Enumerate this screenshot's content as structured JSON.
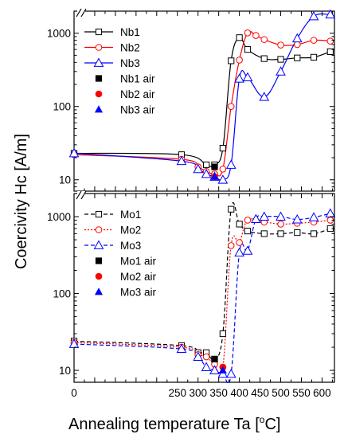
{
  "chart_data": [
    {
      "type": "line",
      "panel": "top",
      "yscale": "log",
      "xlim": [
        0,
        630
      ],
      "ylim": [
        7,
        2000
      ],
      "yticks": [
        10,
        100,
        1000
      ],
      "ytick_labels": [
        "10",
        "100",
        "1000"
      ],
      "grid": false,
      "legend_position": "top-left",
      "series": [
        {
          "name": "Nb1",
          "color": "#000000",
          "marker": "square-open",
          "dash": "solid",
          "x": [
            0,
            260,
            320,
            340,
            360,
            380,
            400,
            420,
            460,
            500,
            540,
            580,
            620
          ],
          "y": [
            23,
            22,
            16,
            16,
            27,
            420,
            870,
            600,
            450,
            440,
            460,
            470,
            560
          ]
        },
        {
          "name": "Nb2",
          "color": "#ff0000",
          "marker": "circle-open",
          "dash": "solid",
          "x": [
            0,
            260,
            300,
            320,
            340,
            360,
            380,
            400,
            420,
            440,
            460,
            500,
            540,
            580,
            620
          ],
          "y": [
            22,
            19,
            15,
            13,
            12,
            14,
            100,
            430,
            1010,
            930,
            820,
            690,
            700,
            800,
            780
          ]
        },
        {
          "name": "Nb3",
          "color": "#0000ff",
          "marker": "triangle-open",
          "dash": "solid",
          "x": [
            0,
            260,
            300,
            320,
            340,
            360,
            380,
            400,
            420,
            460,
            500,
            540,
            580,
            620
          ],
          "y": [
            23,
            18,
            14,
            12,
            11,
            10,
            16,
            240,
            250,
            135,
            300,
            850,
            1700,
            1800
          ]
        },
        {
          "name": "Nb1 air",
          "color": "#000000",
          "marker": "square-filled",
          "dash": "none",
          "x": [
            340
          ],
          "y": [
            15
          ]
        },
        {
          "name": "Nb2 air",
          "color": "#ff0000",
          "marker": "circle-filled",
          "dash": "none",
          "x": [
            340
          ],
          "y": [
            11
          ]
        },
        {
          "name": "Nb3 air",
          "color": "#0000ff",
          "marker": "triangle-filled",
          "dash": "none",
          "x": [
            340
          ],
          "y": [
            11
          ]
        }
      ]
    },
    {
      "type": "line",
      "panel": "bottom",
      "yscale": "log",
      "xlim": [
        0,
        630
      ],
      "ylim": [
        7,
        2000
      ],
      "yticks": [
        10,
        100,
        1000
      ],
      "ytick_labels": [
        "10",
        "100",
        "1000"
      ],
      "grid": false,
      "legend_position": "top-left",
      "series": [
        {
          "name": "Mo1",
          "color": "#000000",
          "marker": "square-open",
          "dash": "dashed",
          "x": [
            0,
            260,
            300,
            320,
            340,
            360,
            380,
            400,
            420,
            460,
            500,
            540,
            580,
            620
          ],
          "y": [
            24,
            21,
            17,
            17,
            14,
            30,
            1250,
            800,
            650,
            600,
            600,
            620,
            600,
            700
          ]
        },
        {
          "name": "Mo2",
          "color": "#ff0000",
          "marker": "circle-open",
          "dash": "dotted",
          "x": [
            0,
            260,
            300,
            320,
            340,
            360,
            380,
            400,
            420,
            460,
            500,
            540,
            580,
            620
          ],
          "y": [
            23,
            20,
            16,
            15,
            12,
            11,
            420,
            460,
            900,
            850,
            800,
            820,
            850,
            900
          ]
        },
        {
          "name": "Mo3",
          "color": "#0000ff",
          "marker": "triangle-open",
          "dash": "dashed",
          "x": [
            0,
            260,
            300,
            320,
            340,
            360,
            380,
            400,
            420,
            440,
            460,
            500,
            540,
            580,
            620
          ],
          "y": [
            22,
            19,
            15,
            11,
            10,
            9,
            9,
            340,
            360,
            930,
            1000,
            1000,
            920,
            980,
            1100
          ]
        },
        {
          "name": "Mo1 air",
          "color": "#000000",
          "marker": "square-filled",
          "dash": "none",
          "x": [
            340
          ],
          "y": [
            14
          ]
        },
        {
          "name": "Mo2 air",
          "color": "#ff0000",
          "marker": "circle-filled",
          "dash": "none",
          "x": [
            360
          ],
          "y": [
            11
          ]
        },
        {
          "name": "Mo3 air",
          "color": "#0000ff",
          "marker": "triangle-filled",
          "dash": "none",
          "x": [
            360
          ],
          "y": [
            10
          ]
        }
      ]
    }
  ],
  "shared_axes": {
    "xlabel_main": "Annealing temperature Ta [",
    "xlabel_sup": "o",
    "xlabel_unit": "C]",
    "ylabel": "Coercivity Hc [A/m]",
    "xticks": [
      0,
      50,
      100,
      150,
      200,
      250,
      300,
      350,
      400,
      450,
      500,
      550,
      600
    ],
    "xtick_labels": [
      "0",
      "",
      "",
      "",
      "",
      "250",
      "300",
      "350",
      "400",
      "450",
      "500",
      "550",
      "600"
    ]
  }
}
